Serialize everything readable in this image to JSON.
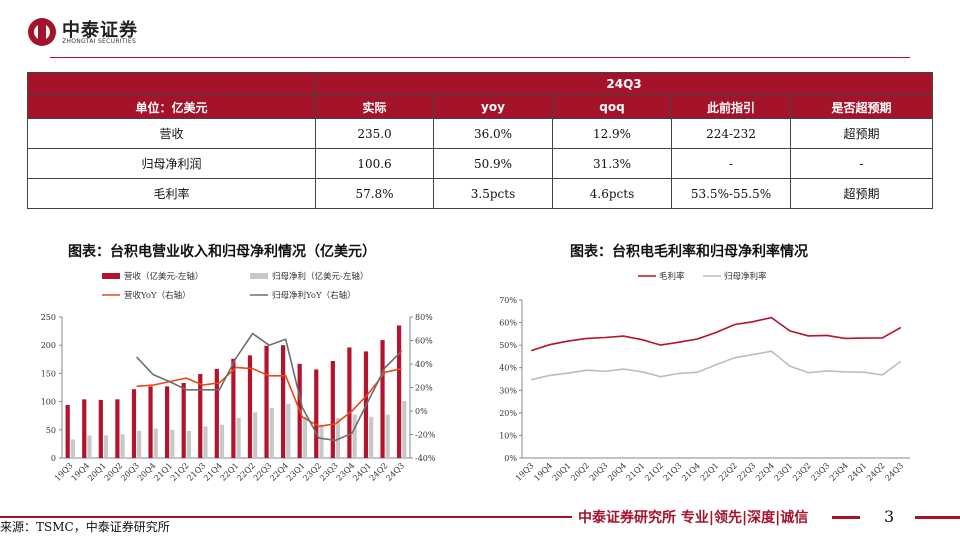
{
  "header": {
    "company_cn": "中泰证券",
    "company_en": "ZHONGTAI SECURITIES",
    "brand_color": "#a5132b"
  },
  "table": {
    "period": "24Q3",
    "unit_label": "单位：亿美元",
    "columns": [
      "实际",
      "yoy",
      "qoq",
      "此前指引",
      "是否超预期"
    ],
    "rows": [
      {
        "label": "营收",
        "cells": [
          "235.0",
          "36.0%",
          "12.9%",
          "224-232",
          "超预期"
        ]
      },
      {
        "label": "归母净利润",
        "cells": [
          "100.6",
          "50.9%",
          "31.3%",
          "-",
          "-"
        ]
      },
      {
        "label": "毛利率",
        "cells": [
          "57.8%",
          "3.5pcts",
          "4.6pcts",
          "53.5%-55.5%",
          "超预期"
        ]
      }
    ]
  },
  "chart_titles": {
    "left": "图表：台积电营业收入和归母净利情况（亿美元）",
    "right": "图表：台积电毛利率和归母净利率情况"
  },
  "chart_data": [
    {
      "type": "bar",
      "categories": [
        "19Q3",
        "19Q4",
        "20Q1",
        "20Q2",
        "20Q3",
        "20Q4",
        "21Q1",
        "21Q2",
        "21Q3",
        "21Q4",
        "22Q1",
        "22Q2",
        "22Q3",
        "22Q4",
        "23Q1",
        "23Q2",
        "23Q3",
        "23Q4",
        "24Q1",
        "24Q2",
        "24Q3"
      ],
      "series": [
        {
          "name": "营收（亿美元-左轴）",
          "kind": "bar",
          "axis": "left",
          "color": "#b5122d",
          "values": [
            94,
            104,
            103,
            104,
            122,
            127,
            127,
            133,
            149,
            158,
            176,
            182,
            199,
            200,
            167,
            157,
            172,
            196,
            189,
            209,
            235
          ]
        },
        {
          "name": "归母净利（亿美元-左轴）",
          "kind": "bar",
          "axis": "left",
          "color": "#c8c8c8",
          "values": [
            33,
            40,
            40,
            42,
            48,
            52,
            50,
            48,
            56,
            59,
            71,
            81,
            89,
            96,
            73,
            59,
            71,
            77,
            73,
            77,
            101
          ]
        },
        {
          "name": "营收YoY（右轴）",
          "kind": "line",
          "axis": "right",
          "color": "#e64a19",
          "values": [
            null,
            null,
            null,
            null,
            21,
            22,
            25,
            28,
            22,
            24,
            37,
            36,
            30,
            30,
            -5,
            -13,
            -11,
            0,
            15,
            33,
            36
          ]
        },
        {
          "name": "归母净利YoY（右轴）",
          "kind": "line",
          "axis": "right",
          "color": "#6e6e6e",
          "values": [
            null,
            null,
            null,
            null,
            46,
            31,
            25,
            18,
            18,
            18,
            45,
            66,
            56,
            61,
            3,
            -23,
            -25,
            -19,
            9,
            37,
            51
          ]
        }
      ],
      "ylim_left": [
        0,
        250
      ],
      "yticks_left": [
        0,
        50,
        100,
        150,
        200,
        250
      ],
      "ylim_right": [
        -40,
        80
      ],
      "yticks_right": [
        "-40%",
        "-20%",
        "0%",
        "20%",
        "40%",
        "60%",
        "80%"
      ],
      "legend": "top"
    },
    {
      "type": "line",
      "categories": [
        "19Q3",
        "19Q4",
        "20Q1",
        "20Q2",
        "20Q3",
        "20Q4",
        "21Q1",
        "21Q2",
        "21Q3",
        "21Q4",
        "22Q1",
        "22Q2",
        "22Q3",
        "22Q4",
        "23Q1",
        "23Q2",
        "23Q3",
        "23Q4",
        "24Q1",
        "24Q2",
        "24Q3"
      ],
      "series": [
        {
          "name": "毛利率",
          "color": "#b5122d",
          "values": [
            47.6,
            50.2,
            51.8,
            53.0,
            53.4,
            54.0,
            52.4,
            50.0,
            51.3,
            52.7,
            55.6,
            59.1,
            60.4,
            62.2,
            56.3,
            54.1,
            54.3,
            53.0,
            53.1,
            53.2,
            57.8
          ]
        },
        {
          "name": "归母净利率",
          "color": "#bdbdbd",
          "values": [
            34.7,
            36.6,
            37.6,
            38.9,
            38.4,
            39.4,
            38.2,
            36.0,
            37.5,
            38.0,
            41.3,
            44.4,
            45.8,
            47.3,
            40.7,
            37.8,
            38.6,
            38.2,
            38.0,
            36.8,
            42.8
          ]
        }
      ],
      "ylim": [
        0,
        70
      ],
      "yticks": [
        "0%",
        "10%",
        "20%",
        "30%",
        "40%",
        "50%",
        "60%",
        "70%"
      ],
      "legend": "top"
    }
  ],
  "footer": {
    "source": "来源：TSMC，中泰证券研究所",
    "tagline": "中泰证券研究所 专业|领先|深度|诚信",
    "page": "3"
  }
}
